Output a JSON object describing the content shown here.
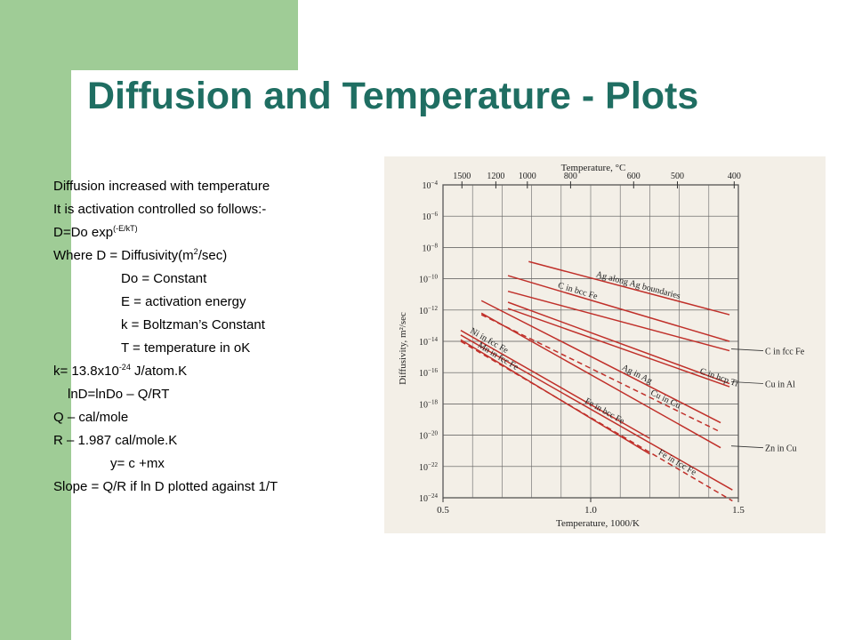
{
  "slide": {
    "title": "Diffusion and Temperature - Plots",
    "lines": {
      "l1": "Diffusion increased with temperature",
      "l2": "It is activation controlled so follows:-",
      "l3_main": "D=Do exp",
      "l3_sup": "(-E/kT)",
      "l4_main": "Where D = Diffusivity(m",
      "l4_sup": "2",
      "l4_end": "/sec)",
      "l5": "Do = Constant",
      "l6": "E = activation energy",
      "l7": "k = Boltzman’s Constant",
      "l8": "T = temperature in oK",
      "l9_main": "k= 13.8x10",
      "l9_sup": "-24",
      "l9_end": " J/atom.K",
      "l10": "lnD=lnDo – Q/RT",
      "l11": "Q – cal/mole",
      "l12": "R – 1.987 cal/mole.K",
      "l13": "y= c +mx",
      "l14": "Slope = Q/R if ln D plotted against 1/T"
    }
  },
  "colors": {
    "accent_bar": "#9fcc96",
    "title": "#1f6e62",
    "series": "#c0302a"
  },
  "chart_data": {
    "type": "line",
    "title": "",
    "xlabel": "Temperature, 1000/K",
    "ylabel": "Diffusivity, m²/sec",
    "top_axis_label": "Temperature, °C",
    "xlim": [
      0.5,
      1.5
    ],
    "ylim_log10": [
      -24,
      -4
    ],
    "x_ticks": [
      {
        "v": 0.5,
        "label": "0.5"
      },
      {
        "v": 1.0,
        "label": "1.0"
      },
      {
        "v": 1.5,
        "label": "1.5"
      }
    ],
    "top_ticks": [
      {
        "celsius": 1500,
        "label": "1500"
      },
      {
        "celsius": 1200,
        "label": "1200"
      },
      {
        "celsius": 1000,
        "label": "1000"
      },
      {
        "celsius": 800,
        "label": "800"
      },
      {
        "celsius": 600,
        "label": "600"
      },
      {
        "celsius": 500,
        "label": "500"
      },
      {
        "celsius": 400,
        "label": "400"
      }
    ],
    "y_ticks": [
      {
        "exp": -4,
        "base": "10",
        "sup": "−4"
      },
      {
        "exp": -6,
        "base": "10",
        "sup": "−6"
      },
      {
        "exp": -8,
        "base": "10",
        "sup": "−8"
      },
      {
        "exp": -10,
        "base": "10",
        "sup": "−10"
      },
      {
        "exp": -12,
        "base": "10",
        "sup": "−12"
      },
      {
        "exp": -14,
        "base": "10",
        "sup": "−14"
      },
      {
        "exp": -16,
        "base": "10",
        "sup": "−16"
      },
      {
        "exp": -18,
        "base": "10",
        "sup": "−18"
      },
      {
        "exp": -20,
        "base": "10",
        "sup": "−20"
      },
      {
        "exp": -22,
        "base": "10",
        "sup": "−22"
      },
      {
        "exp": -24,
        "base": "10",
        "sup": "−24"
      }
    ],
    "grid": true,
    "series": [
      {
        "name": "Ag along Ag boundaries",
        "dashed": false,
        "x": [
          0.79,
          1.47
        ],
        "y": [
          -8.9,
          -12.3
        ]
      },
      {
        "name": "C in bcc Fe",
        "dashed": false,
        "x": [
          0.72,
          1.47
        ],
        "y": [
          -9.8,
          -14.0
        ]
      },
      {
        "name": "C in fcc Fe",
        "dashed": false,
        "x": [
          0.72,
          1.47
        ],
        "y": [
          -10.8,
          -14.6
        ]
      },
      {
        "name": "Cu in Al",
        "dashed": false,
        "x": [
          0.72,
          1.47
        ],
        "y": [
          -11.5,
          -16.7
        ]
      },
      {
        "name": "C in hcp Ti",
        "dashed": false,
        "x": [
          0.72,
          1.47
        ],
        "y": [
          -11.9,
          -16.9
        ]
      },
      {
        "name": "Ag in Ag",
        "dashed": false,
        "x": [
          0.63,
          1.44
        ],
        "y": [
          -11.4,
          -19.2
        ]
      },
      {
        "name": "Cu in Cu",
        "dashed": true,
        "x": [
          0.63,
          1.44
        ],
        "y": [
          -12.3,
          -19.8
        ]
      },
      {
        "name": "Zn in Cu",
        "dashed": false,
        "x": [
          0.63,
          1.44
        ],
        "y": [
          -12.2,
          -20.8
        ]
      },
      {
        "name": "Ni in fcc Fe",
        "dashed": false,
        "x": [
          0.56,
          1.2
        ],
        "y": [
          -13.3,
          -20.2
        ]
      },
      {
        "name": "Mn in fcc Fe",
        "dashed": false,
        "x": [
          0.56,
          1.2
        ],
        "y": [
          -13.9,
          -21.2
        ]
      },
      {
        "name": "Fe in bcc Fe",
        "dashed": false,
        "x": [
          0.56,
          1.48
        ],
        "y": [
          -13.6,
          -23.5
        ]
      },
      {
        "name": "Fe in fcc Fe",
        "dashed": true,
        "x": [
          0.56,
          1.48
        ],
        "y": [
          -14.0,
          -24.2
        ]
      }
    ]
  }
}
